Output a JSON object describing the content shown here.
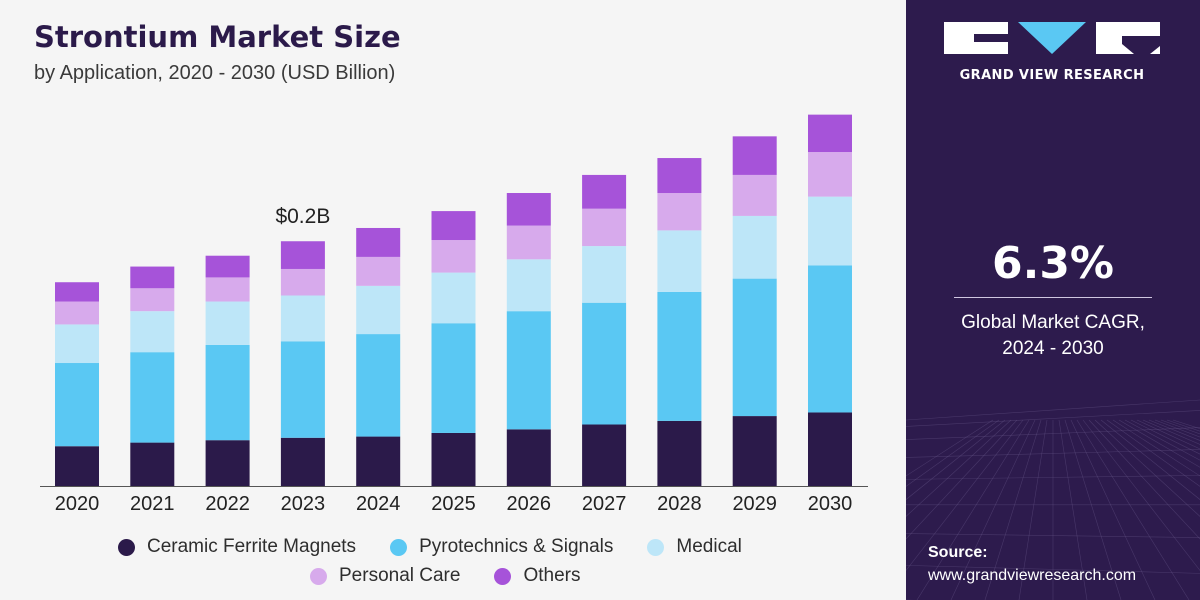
{
  "chart_data": {
    "type": "bar",
    "stacked": true,
    "title": "Strontium Market Size",
    "subtitle": "by Application, 2020 - 2030 (USD Billion)",
    "categories": [
      "2020",
      "2021",
      "2022",
      "2023",
      "2024",
      "2025",
      "2026",
      "2027",
      "2028",
      "2029",
      "2030"
    ],
    "series": [
      {
        "name": "Ceramic Ferrite Magnets",
        "color": "#2b1a4a",
        "values": [
          0.033,
          0.036,
          0.038,
          0.04,
          0.041,
          0.044,
          0.047,
          0.051,
          0.054,
          0.058,
          0.061
        ]
      },
      {
        "name": "Pyrotechnics & Signals",
        "color": "#5ac8f3",
        "values": [
          0.069,
          0.075,
          0.079,
          0.08,
          0.085,
          0.091,
          0.098,
          0.101,
          0.107,
          0.114,
          0.122
        ]
      },
      {
        "name": "Medical",
        "color": "#bde6f8",
        "values": [
          0.032,
          0.034,
          0.036,
          0.038,
          0.04,
          0.042,
          0.043,
          0.047,
          0.051,
          0.052,
          0.057
        ]
      },
      {
        "name": "Personal Care",
        "color": "#d7aaec",
        "values": [
          0.019,
          0.019,
          0.02,
          0.022,
          0.024,
          0.027,
          0.028,
          0.031,
          0.031,
          0.034,
          0.037
        ]
      },
      {
        "name": "Others",
        "color": "#a653d9",
        "values": [
          0.016,
          0.018,
          0.018,
          0.023,
          0.024,
          0.024,
          0.027,
          0.028,
          0.029,
          0.032,
          0.031
        ]
      }
    ],
    "annotations": [
      {
        "category": "2023",
        "text": "$0.2B"
      }
    ],
    "ylim": [
      0,
      0.35
    ],
    "grid": false,
    "legend_position": "bottom"
  },
  "sidebar": {
    "brand": "GRAND VIEW RESEARCH",
    "cagr_value": "6.3%",
    "cagr_label_line1": "Global Market CAGR,",
    "cagr_label_line2": "2024 - 2030",
    "source_label": "Source:",
    "source_url": "www.grandviewresearch.com",
    "colors": {
      "background": "#2d1b4d",
      "logo_accent": "#5ac8f3"
    }
  }
}
